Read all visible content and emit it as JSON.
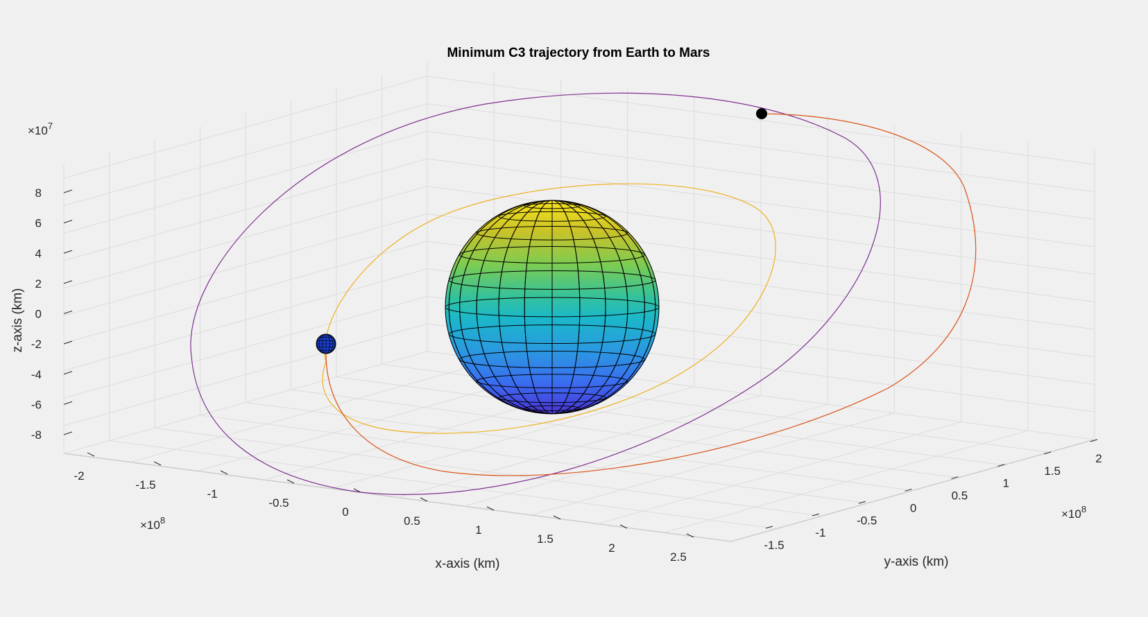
{
  "chart_data": {
    "type": "line",
    "title": "Minimum C3 trajectory from Earth to Mars",
    "xlabel": "x-axis (km)",
    "ylabel": "y-axis (km)",
    "zlabel": "z-axis (km)",
    "x_exponent": "×10",
    "x_exponent_power": "8",
    "y_exponent": "×10",
    "y_exponent_power": "8",
    "z_exponent": "×10",
    "z_exponent_power": "7",
    "x_ticks": [
      "-2",
      "-1.5",
      "-1",
      "-0.5",
      "0",
      "0.5",
      "1",
      "1.5",
      "2",
      "2.5"
    ],
    "y_ticks": [
      "-1.5",
      "-1",
      "-0.5",
      "0",
      "0.5",
      "1",
      "1.5",
      "2"
    ],
    "z_ticks": [
      "8",
      "6",
      "4",
      "2",
      "0",
      "-2",
      "-4",
      "-6",
      "-8"
    ],
    "grid": true,
    "colors": {
      "earth_orbit": "#EDB120",
      "mars_orbit": "#7E2F8E",
      "transfer": "#D95319",
      "mars_marker": "#000000",
      "grid": "#dcdcdc",
      "axes": "#262626"
    },
    "series": [
      {
        "values": []
      },
      {
        "values": []
      },
      {
        "values": []
      }
    ]
  }
}
